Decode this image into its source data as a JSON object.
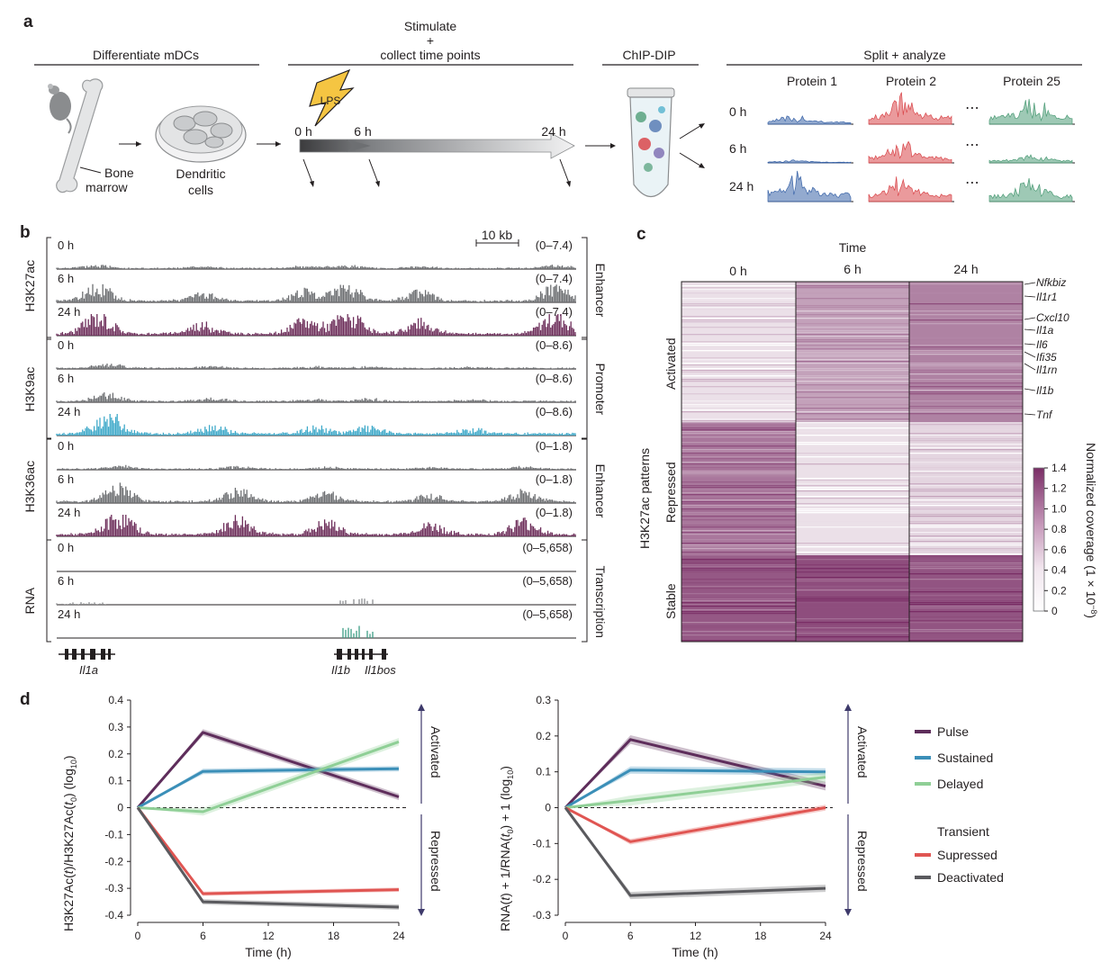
{
  "panel_a": {
    "label": "a",
    "sections": {
      "differentiate": "Differentiate mDCs",
      "stimulate_line1": "Stimulate",
      "stimulate_line2": "+",
      "stimulate_line3": "collect time points",
      "chipdip": "ChIP-DIP",
      "split": "Split + analyze"
    },
    "bone_marrow_l1": "Bone",
    "bone_marrow_l2": "marrow",
    "dendritic_l1": "Dendritic",
    "dendritic_l2": "cells",
    "lps": "LPS",
    "timeline": [
      "0 h",
      "6 h",
      "24 h"
    ],
    "proteins": [
      "Protein 1",
      "Protein 2",
      "Protein 25"
    ],
    "rows": [
      "0 h",
      "6 h",
      "24 h"
    ],
    "ellipsis": "⋯",
    "colors": {
      "protein1": "#3a64a8",
      "protein2": "#d9474b",
      "protein25": "#4f9d78"
    }
  },
  "panel_b": {
    "label": "b",
    "scalebar": "10 kb",
    "tracks": [
      {
        "mark": "H3K27ac",
        "region": "Enhancer",
        "color": "#6d2e5a",
        "times": [
          "0 h",
          "6 h",
          "24 h"
        ],
        "ranges": [
          "(0–7.4)",
          "(0–7.4)",
          "(0–7.4)"
        ]
      },
      {
        "mark": "H3K9ac",
        "region": "Promoter",
        "color": "#3fa9c9",
        "times": [
          "0 h",
          "6 h",
          "24 h"
        ],
        "ranges": [
          "(0–8.6)",
          "(0–8.6)",
          "(0–8.6)"
        ]
      },
      {
        "mark": "H3K36ac",
        "region": "Enhancer",
        "color": "#6d2e5a",
        "times": [
          "0 h",
          "6 h",
          "24 h"
        ],
        "ranges": [
          "(0–1.8)",
          "(0–1.8)",
          "(0–1.8)"
        ]
      },
      {
        "mark": "RNA",
        "region": "Transcription",
        "color": "#3e9e86",
        "times": [
          "0 h",
          "6 h",
          "24 h"
        ],
        "ranges": [
          "(0–5,658)",
          "(0–5,658)",
          "(0–5,658)"
        ]
      }
    ],
    "genes": [
      "Il1a",
      "Il1b",
      "Il1bos"
    ]
  },
  "panel_c": {
    "label": "c",
    "time_title": "Time",
    "columns": [
      "0 h",
      "6 h",
      "24 h"
    ],
    "row_groups": [
      "Activated",
      "Repressed",
      "Stable"
    ],
    "y_title": "H3K27ac patterns",
    "gene_labels": [
      "Nfkbiz",
      "Il1r1",
      "Cxcl10",
      "Il1a",
      "Il6",
      "Ifi35",
      "Il1rn",
      "Il1b",
      "Tnf"
    ],
    "colorbar_title": "Normalized coverage (1 × 10",
    "colorbar_exp": "−8",
    "colorbar_close": ")",
    "colorbar_ticks": [
      "1.4",
      "1.2",
      "1.0",
      "0.8",
      "0.6",
      "0.4",
      "0.2",
      "0"
    ],
    "colors": {
      "high": "#7a2e66",
      "low": "#ffffff"
    }
  },
  "panel_d": {
    "label": "d",
    "right_labels": {
      "activated": "Activated",
      "repressed": "Repressed"
    },
    "legend": {
      "items": [
        {
          "name": "Pulse",
          "color": "#5e2d5b"
        },
        {
          "name": "Sustained",
          "color": "#3b8fb8"
        },
        {
          "name": "Delayed",
          "color": "#8fcf96"
        }
      ],
      "transient_title": "Transient",
      "transient_items": [
        {
          "name": "Supressed",
          "color": "#e05552"
        },
        {
          "name": "Deactivated",
          "color": "#5a5a5e"
        }
      ]
    }
  },
  "chart_data": [
    {
      "type": "line",
      "title": "",
      "xlabel": "Time (h)",
      "ylabel_parts": [
        "H3K27Ac(",
        "t",
        ")/H3K27Ac(",
        "t",
        "0",
        ") (log",
        "10",
        ")"
      ],
      "xlim": [
        0,
        24
      ],
      "ylim": [
        -0.4,
        0.4
      ],
      "xticks": [
        "0",
        "6",
        "12",
        "18",
        "24"
      ],
      "yticks": [
        "0.4",
        "0.3",
        "0.2",
        "0.1",
        "0",
        "-0.1",
        "-0.2",
        "-0.3",
        "-0.4"
      ],
      "x": [
        0,
        6,
        24
      ],
      "series": [
        {
          "name": "Pulse",
          "values": [
            0,
            0.28,
            0.04
          ]
        },
        {
          "name": "Sustained",
          "values": [
            0,
            0.135,
            0.145
          ]
        },
        {
          "name": "Delayed",
          "values": [
            0,
            -0.015,
            0.245
          ]
        },
        {
          "name": "Supressed",
          "values": [
            0,
            -0.32,
            -0.305
          ]
        },
        {
          "name": "Deactivated",
          "values": [
            0,
            -0.35,
            -0.37
          ]
        }
      ]
    },
    {
      "type": "line",
      "title": "",
      "xlabel": "Time (h)",
      "ylabel_parts": [
        "RNA(",
        "t",
        ") + 1/RNA(",
        "t",
        "0",
        ") + 1 (log",
        "10",
        ")"
      ],
      "xlim": [
        0,
        24
      ],
      "ylim": [
        -0.3,
        0.3
      ],
      "xticks": [
        "0",
        "6",
        "12",
        "18",
        "24"
      ],
      "yticks": [
        "0.3",
        "0.2",
        "0.1",
        "0",
        "-0.1",
        "-0.2",
        "-0.3"
      ],
      "x": [
        0,
        6,
        24
      ],
      "series": [
        {
          "name": "Pulse",
          "values": [
            0,
            0.19,
            0.06
          ]
        },
        {
          "name": "Sustained",
          "values": [
            0,
            0.105,
            0.1
          ]
        },
        {
          "name": "Delayed",
          "values": [
            0,
            0.02,
            0.085
          ]
        },
        {
          "name": "Supressed",
          "values": [
            0,
            -0.095,
            0
          ]
        },
        {
          "name": "Deactivated",
          "values": [
            0,
            -0.245,
            -0.225
          ]
        }
      ]
    }
  ]
}
